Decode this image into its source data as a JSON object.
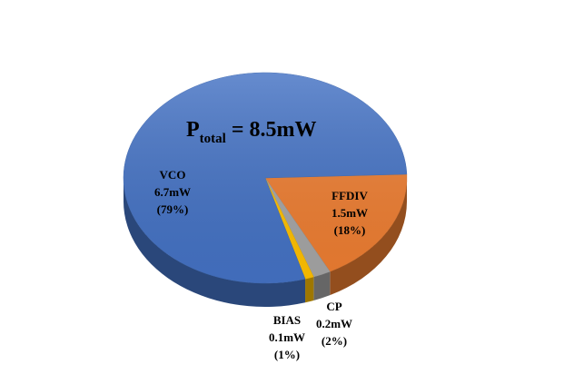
{
  "chart_data": {
    "type": "pie",
    "title": {
      "main": "P",
      "sub": "total",
      "rest": "= 8.5mW"
    },
    "categories": [
      "FFDIV",
      "CP",
      "BIAS",
      "VCO"
    ],
    "power_labels": [
      "1.5mW",
      "0.2mW",
      "0.1mW",
      "6.7mW"
    ],
    "values": [
      18,
      2,
      1,
      79
    ],
    "value_labels": [
      "(18%)",
      "(2%)",
      "(1%)",
      "(79%)"
    ],
    "colors": [
      "#ed7d31",
      "#a5a5a5",
      "#ffc000",
      "#4472c4"
    ]
  }
}
